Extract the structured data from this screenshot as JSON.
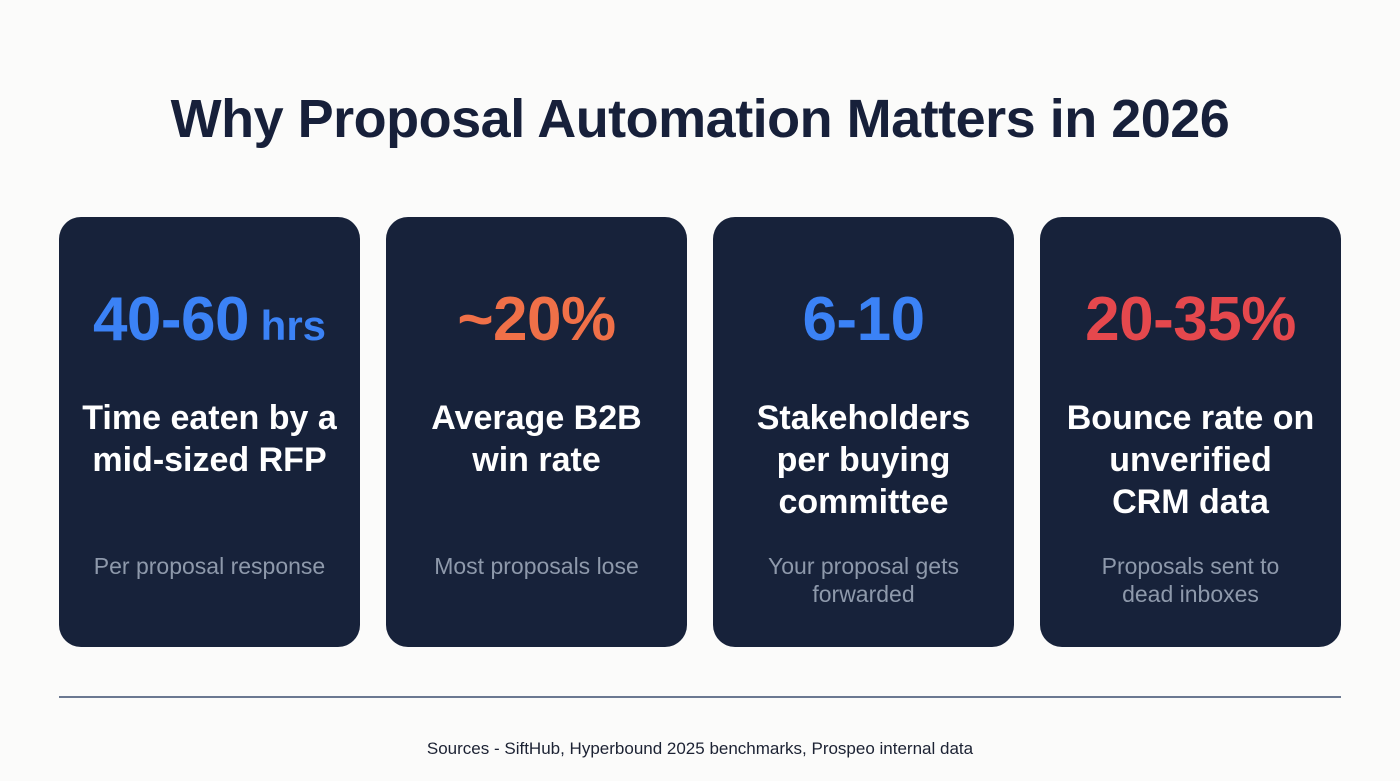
{
  "header": {
    "title": "Why Proposal Automation Matters in 2026"
  },
  "cards": [
    {
      "stat_value": "40-60",
      "stat_unit": " hrs",
      "stat_color": "#3b82f6",
      "label": "Time eaten by a mid-sized RFP",
      "sub": "Per proposal response"
    },
    {
      "stat_value": "~20%",
      "stat_unit": "",
      "stat_color": "#f07048",
      "label": "Average B2B win rate",
      "sub": "Most proposals lose"
    },
    {
      "stat_value": "6-10",
      "stat_unit": "",
      "stat_color": "#3b82f6",
      "label": "Stakeholders per buying committee",
      "sub": "Your proposal gets forwarded"
    },
    {
      "stat_value": "20-35%",
      "stat_unit": "",
      "stat_color": "#e5484d",
      "label": "Bounce rate on unverified CRM data",
      "sub": "Proposals sent to dead inboxes"
    }
  ],
  "footer": {
    "sources": "Sources - SiftHub, Hyperbound 2025 benchmarks, Prospeo internal data"
  },
  "colors": {
    "background": "#fbfbfa",
    "card_background": "#17223a",
    "title": "#17203a",
    "subtext": "#8e99ab",
    "divider": "#6b7891"
  }
}
